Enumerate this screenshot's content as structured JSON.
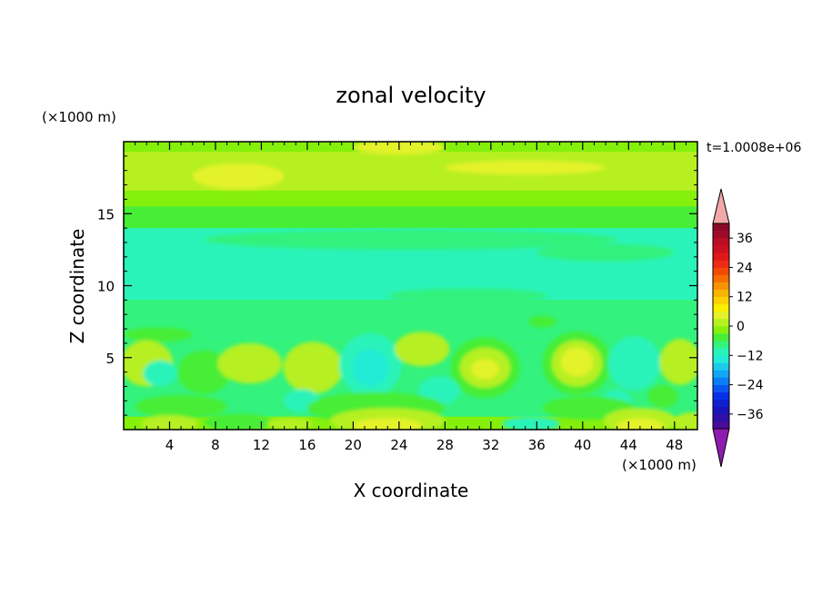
{
  "chart_data": {
    "type": "heatmap",
    "title": "zonal velocity",
    "xlabel": "X coordinate",
    "ylabel": "Z coordinate",
    "x_unit": "(×1000 m)",
    "y_unit": "(×1000 m)",
    "time_label": "t=1.0008e+06",
    "xlim": [
      0,
      50
    ],
    "ylim": [
      0,
      20
    ],
    "x_ticks": [
      "4",
      "8",
      "12",
      "16",
      "20",
      "24",
      "28",
      "32",
      "36",
      "40",
      "44",
      "48"
    ],
    "y_ticks": [
      "5",
      "10",
      "15"
    ],
    "colorbar": {
      "labels": [
        "36",
        "24",
        "12",
        "0",
        "−12",
        "−24",
        "−36"
      ],
      "levels": [
        -42,
        -39,
        -36,
        -33,
        -30,
        -27,
        -24,
        -21,
        -18,
        -15,
        -12,
        -9,
        -6,
        -3,
        0,
        3,
        6,
        9,
        12,
        15,
        18,
        21,
        24,
        27,
        30,
        33,
        36,
        39,
        42
      ],
      "level_colors": [
        "#4b0b9b",
        "#2f0fa8",
        "#1a14b8",
        "#0f20d0",
        "#0830e8",
        "#0a55f0",
        "#0b7ef5",
        "#12a6f5",
        "#1ccbea",
        "#22ecd6",
        "#2af3b9",
        "#33f27d",
        "#46ee36",
        "#85f00c",
        "#b6f020",
        "#e4f22a",
        "#fbef00",
        "#fbd200",
        "#f9b400",
        "#f79200",
        "#f56e00",
        "#f24a00",
        "#ee2a18",
        "#e01818",
        "#cc1020",
        "#bb0d24",
        "#a00a2a",
        "#8a0a2a"
      ],
      "over_color": "#f3a8a8",
      "under_color": "#8e1bb0"
    },
    "field_colors": {
      "pos_strong": "#fbef00",
      "pos_mid": "#e4f22a",
      "pos_weak": "#b6f020",
      "zero": "#85f00c",
      "near_zero": "#46ee36",
      "neg_weak": "#33f27d",
      "neg_mid": "#2af3b9",
      "neg_strong": "#22ecd6"
    },
    "field_description_levels": {
      "z_0_1": "alternating +6 to +12 cells",
      "z_1_6": "eddies between −12 and +9",
      "z_6_9": "about −3",
      "z_9_14": "about −6",
      "z_14_15_5": "about 0",
      "z_15_5_20": "+3 to +9"
    }
  }
}
